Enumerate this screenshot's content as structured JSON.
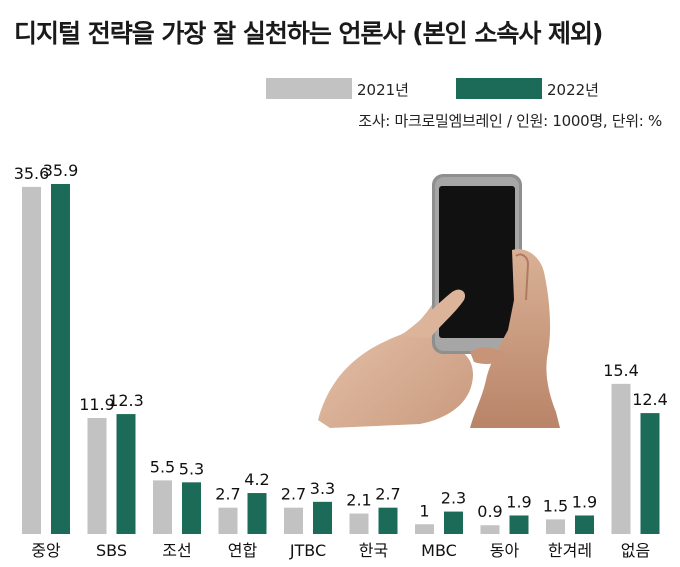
{
  "title": "디지털 전략을 가장 잘 실천하는 언론사 (본인 소속사 제외)",
  "note": "조사: 마크로밀엠브레인 / 인원: 1000명, 단위: %",
  "colors": {
    "y2021": "#c2c2c2",
    "y2022": "#1c6b58"
  },
  "chart_data": {
    "type": "bar",
    "title": "디지털 전략을 가장 잘 실천하는 언론사 (본인 소속사 제외)",
    "categories": [
      "중앙",
      "SBS",
      "조선",
      "연합",
      "JTBC",
      "한국",
      "MBC",
      "동아",
      "한겨레",
      "없음"
    ],
    "series": [
      {
        "name": "2021년",
        "values": [
          35.6,
          11.9,
          5.5,
          2.7,
          2.7,
          2.1,
          1,
          0.9,
          1.5,
          15.4
        ]
      },
      {
        "name": "2022년",
        "values": [
          35.9,
          12.3,
          5.3,
          4.2,
          3.3,
          2.7,
          2.3,
          1.9,
          1.9,
          12.4
        ]
      }
    ],
    "legend": "top-right",
    "grid": false
  }
}
